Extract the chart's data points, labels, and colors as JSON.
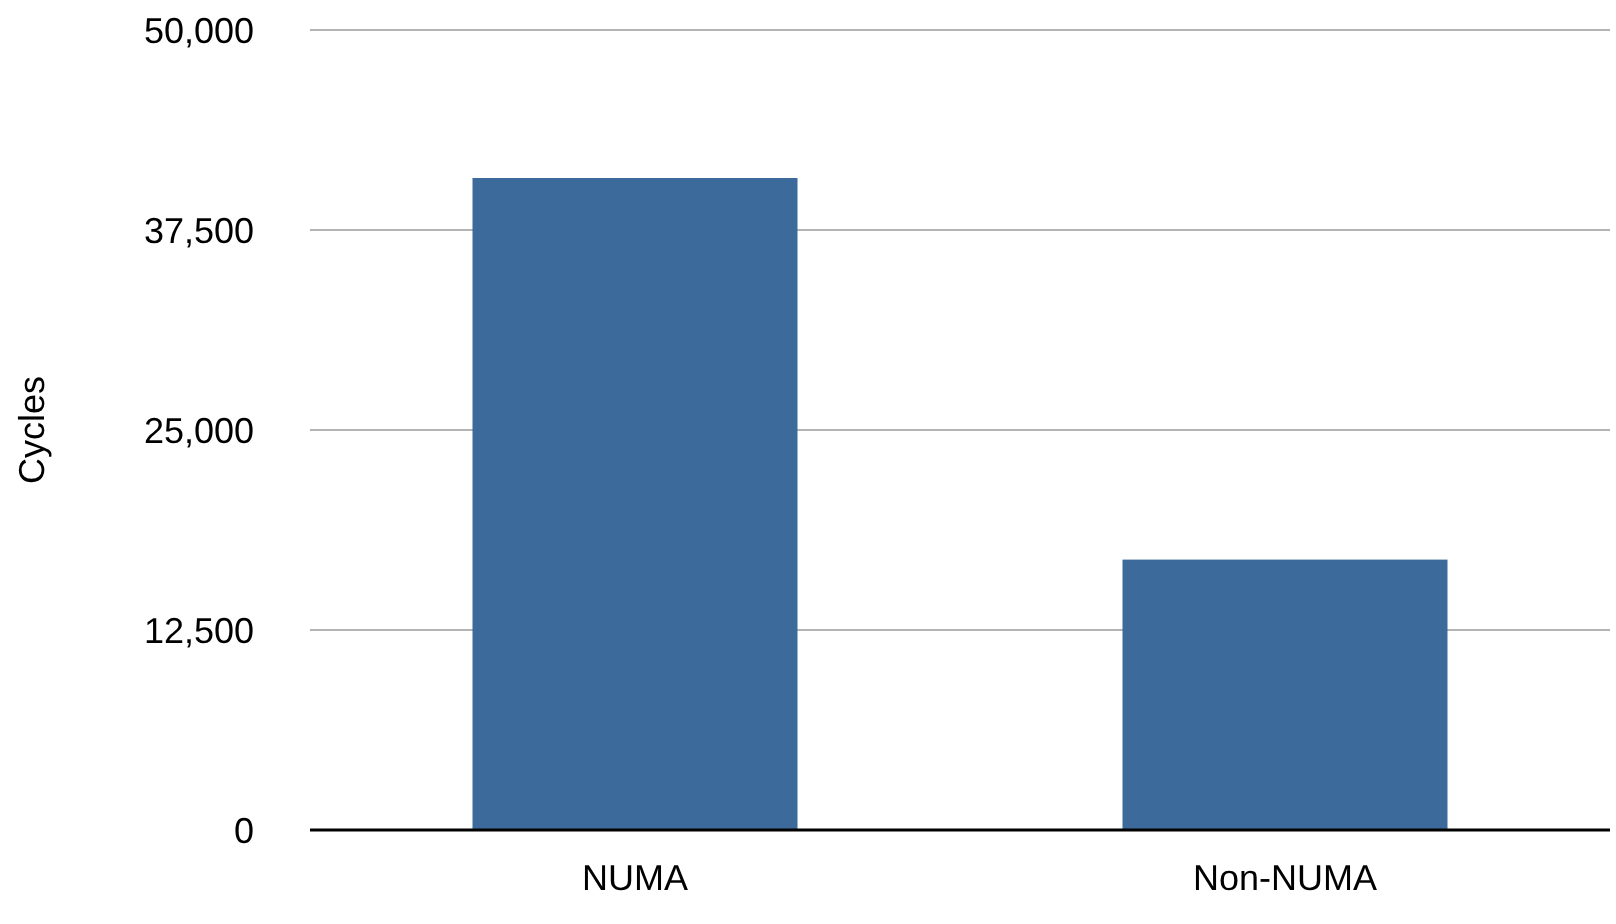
{
  "chart_data": {
    "type": "bar",
    "ylabel": "Cycles",
    "categories": [
      "NUMA",
      "Non-NUMA"
    ],
    "values": [
      40750,
      16900
    ],
    "color": "#3b6a9b",
    "ylim": [
      0,
      50000
    ],
    "yticks": [
      {
        "value": 0,
        "label": "0"
      },
      {
        "value": 12500,
        "label": "12,500"
      },
      {
        "value": 25000,
        "label": "25,000"
      },
      {
        "value": 37500,
        "label": "37,500"
      },
      {
        "value": 50000,
        "label": "50,000"
      }
    ],
    "grid": "y"
  }
}
